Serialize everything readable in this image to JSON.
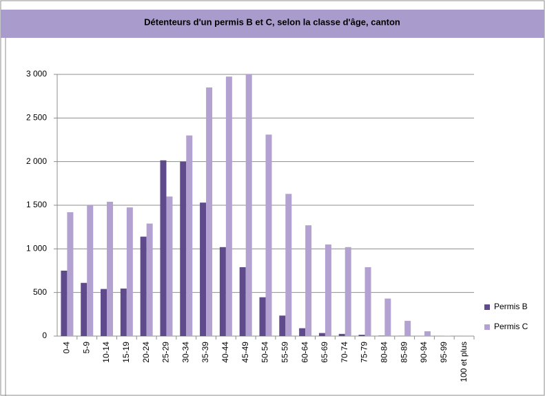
{
  "chart_data": {
    "type": "bar",
    "title": "Détenteurs d'un permis B et C, selon la classe d'âge, canton",
    "categories": [
      "0-4",
      "5-9",
      "10-14",
      "15-19",
      "20-24",
      "25-29",
      "30-34",
      "35-39",
      "40-44",
      "45-49",
      "50-54",
      "55-59",
      "60-64",
      "65-69",
      "70-74",
      "75-79",
      "80-84",
      "85-89",
      "90-94",
      "95-99",
      "100 et plus"
    ],
    "series": [
      {
        "name": "Permis B",
        "color": "#5f4b8b",
        "values": [
          750,
          610,
          540,
          545,
          1140,
          2015,
          2000,
          1530,
          1020,
          790,
          445,
          235,
          90,
          35,
          25,
          15,
          5,
          2,
          0,
          0,
          0
        ]
      },
      {
        "name": "Permis C",
        "color": "#b3a2d1",
        "values": [
          1420,
          1500,
          1540,
          1475,
          1290,
          1600,
          2300,
          2850,
          2975,
          3000,
          2310,
          1630,
          1270,
          1050,
          1020,
          790,
          430,
          175,
          55,
          3,
          1
        ]
      }
    ],
    "ylim": [
      0,
      3000
    ],
    "yticks": [
      0,
      500,
      {
        "value": 1000,
        "label": "1 000"
      },
      {
        "value": 1500,
        "label": "1 500"
      },
      {
        "value": 2000,
        "label": "2 000"
      },
      {
        "value": 2500,
        "label": "2 500"
      },
      {
        "value": 3000,
        "label": "3 000"
      }
    ],
    "grid": true,
    "legend": "right"
  }
}
